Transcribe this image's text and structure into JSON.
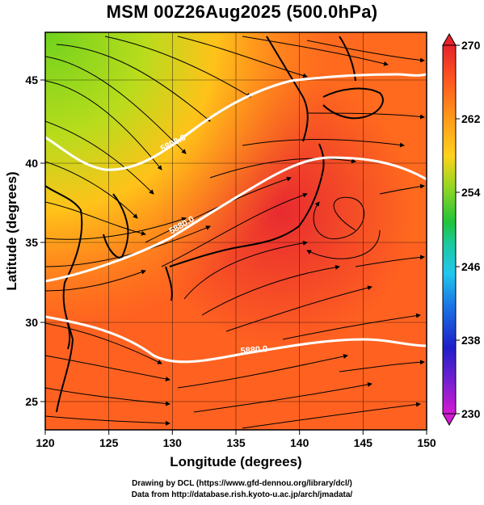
{
  "title": "MSM 00Z26Aug2025 (500.0hPa)",
  "map": {
    "x_axis_label": "Longitude (degrees)",
    "y_axis_label": "Latitude  (degrees)",
    "lon_range": [
      120,
      150
    ],
    "lat_range": [
      22.5,
      47.5
    ],
    "lon_ticks": [
      "120",
      "125",
      "130",
      "135",
      "140",
      "145",
      "150"
    ],
    "lat_ticks": [
      "25",
      "30",
      "35",
      "40",
      "45"
    ],
    "contour_labels": [
      "5880.0",
      "5880.0",
      "5800.0"
    ]
  },
  "colorbar": {
    "ticks": [
      "270",
      "262",
      "254",
      "246",
      "238",
      "230"
    ],
    "range": [
      230,
      270
    ],
    "colors": [
      "#d41bd4",
      "#7a1fd0",
      "#1d1fc8",
      "#1a6ee6",
      "#21c7ee",
      "#1bc9a0",
      "#20c43a",
      "#7ed321",
      "#c8d81c",
      "#ffd21b",
      "#ffa01a",
      "#ff6e1c",
      "#f5452a",
      "#e6232a"
    ]
  },
  "credits": {
    "line1": "Drawing by DCL (https://www.gfd-dennou.org/library/dcl/)",
    "line2": "Data from http://database.rish.kyoto-u.ac.jp/arch/jmadata/"
  }
}
